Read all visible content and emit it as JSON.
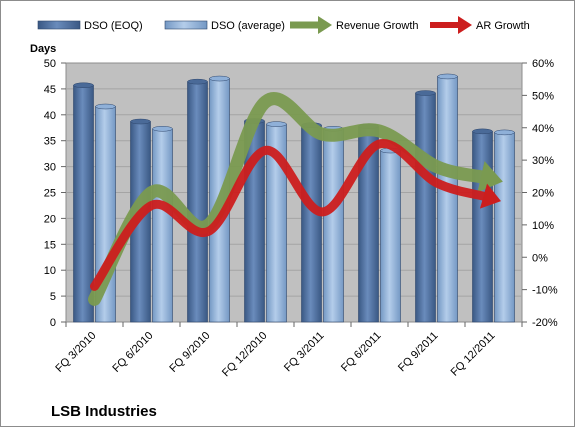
{
  "chart_data": {
    "type": "bar",
    "title": "LSB Industries",
    "ylabel": "Days",
    "categories": [
      "FQ 3/2010",
      "FQ 6/2010",
      "FQ 9/2010",
      "FQ 12/2010",
      "FQ 3/2011",
      "FQ 6/2011",
      "FQ 9/2011",
      "FQ 12/2011"
    ],
    "ylim": [
      0,
      50
    ],
    "yticks": [
      "0",
      "5",
      "10",
      "15",
      "20",
      "25",
      "30",
      "35",
      "40",
      "45",
      "50"
    ],
    "y2lim": [
      -0.2,
      0.6
    ],
    "y2ticks": [
      "-20%",
      "-10%",
      "0%",
      "10%",
      "20%",
      "30%",
      "40%",
      "50%",
      "60%"
    ],
    "series": [
      {
        "name": "DSO (EOQ)",
        "kind": "bar",
        "axis": "left",
        "color": "#4a6a98",
        "values": [
          45.7,
          38.7,
          46.4,
          38.8,
          38.0,
          37.8,
          44.2,
          36.8
        ]
      },
      {
        "name": "DSO (average)",
        "kind": "bar",
        "axis": "left",
        "color": "#8fb0d8",
        "values": [
          41.6,
          37.3,
          47.0,
          38.2,
          37.3,
          33.1,
          47.4,
          36.6
        ]
      },
      {
        "name": "Revenue Growth",
        "kind": "arrow-line",
        "axis": "right",
        "color": "#7a9a50",
        "values": [
          -0.13,
          0.2,
          0.1,
          0.48,
          0.38,
          0.39,
          0.28,
          0.24
        ]
      },
      {
        "name": "AR Growth",
        "kind": "arrow-line",
        "axis": "right",
        "color": "#cc1e1e",
        "values": [
          -0.09,
          0.16,
          0.08,
          0.33,
          0.14,
          0.35,
          0.23,
          0.18
        ]
      }
    ],
    "grid": true,
    "legend": "top",
    "plot_background": "#c0c0c0"
  }
}
